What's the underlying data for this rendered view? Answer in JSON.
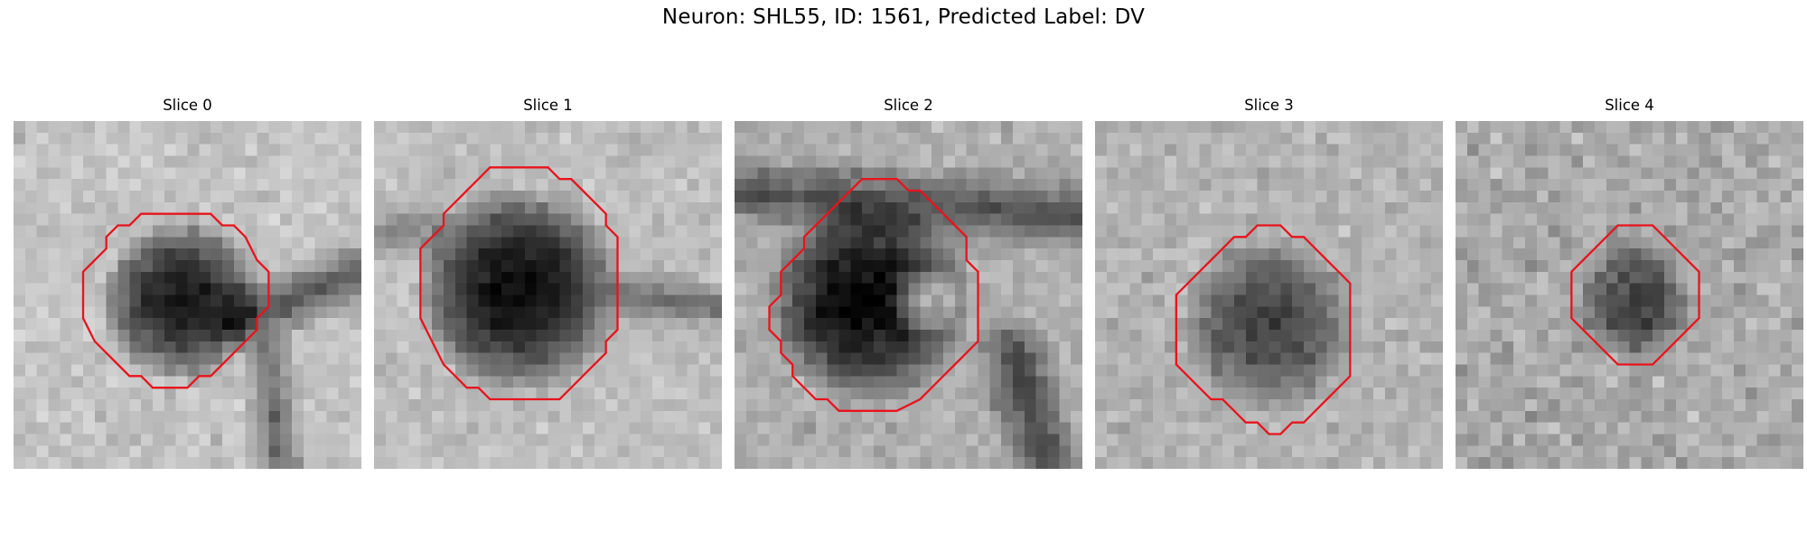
{
  "figure": {
    "suptitle": "Neuron: SHL55, ID: 1561, Predicted Label: DV",
    "contour_color": "#e8141c",
    "colormap": "gray"
  },
  "panels": [
    {
      "title": "Slice 0",
      "image": "grayscale microscopy patch, dark round neuron soma, dark process extending to the right",
      "contour": [
        [
          14,
          8
        ],
        [
          17,
          8
        ],
        [
          18,
          9
        ],
        [
          19,
          9
        ],
        [
          20,
          10
        ],
        [
          21,
          12
        ],
        [
          22,
          13
        ],
        [
          22,
          16
        ],
        [
          21,
          17
        ],
        [
          21,
          18
        ],
        [
          20,
          19
        ],
        [
          19,
          20
        ],
        [
          18,
          21
        ],
        [
          17,
          22
        ],
        [
          16,
          22
        ],
        [
          15,
          23
        ],
        [
          12,
          23
        ],
        [
          11,
          22
        ],
        [
          10,
          22
        ],
        [
          9,
          21
        ],
        [
          8,
          20
        ],
        [
          7,
          19
        ],
        [
          6,
          17
        ],
        [
          6,
          13
        ],
        [
          7,
          12
        ],
        [
          8,
          11
        ],
        [
          8,
          10
        ],
        [
          9,
          9
        ],
        [
          10,
          9
        ],
        [
          11,
          8
        ]
      ]
    },
    {
      "title": "Slice 1",
      "image": "grayscale microscopy patch, large dark neuron soma",
      "contour": [
        [
          10,
          4
        ],
        [
          15,
          4
        ],
        [
          16,
          5
        ],
        [
          17,
          5
        ],
        [
          18,
          6
        ],
        [
          19,
          7
        ],
        [
          20,
          8
        ],
        [
          20,
          9
        ],
        [
          21,
          10
        ],
        [
          21,
          18
        ],
        [
          20,
          19
        ],
        [
          20,
          20
        ],
        [
          19,
          21
        ],
        [
          18,
          22
        ],
        [
          17,
          23
        ],
        [
          16,
          24
        ],
        [
          10,
          24
        ],
        [
          9,
          23
        ],
        [
          8,
          23
        ],
        [
          7,
          22
        ],
        [
          6,
          21
        ],
        [
          5,
          19
        ],
        [
          4,
          17
        ],
        [
          4,
          11
        ],
        [
          5,
          10
        ],
        [
          6,
          9
        ],
        [
          6,
          8
        ],
        [
          7,
          7
        ],
        [
          8,
          6
        ],
        [
          9,
          5
        ]
      ]
    },
    {
      "title": "Slice 2",
      "image": "grayscale microscopy patch, dark soma with a lighter nucleus region on the right",
      "contour": [
        [
          11,
          5
        ],
        [
          14,
          5
        ],
        [
          15,
          6
        ],
        [
          16,
          6
        ],
        [
          17,
          7
        ],
        [
          18,
          8
        ],
        [
          19,
          9
        ],
        [
          20,
          10
        ],
        [
          20,
          12
        ],
        [
          21,
          13
        ],
        [
          21,
          19
        ],
        [
          20,
          20
        ],
        [
          19,
          21
        ],
        [
          18,
          22
        ],
        [
          17,
          23
        ],
        [
          16,
          24
        ],
        [
          14,
          25
        ],
        [
          9,
          25
        ],
        [
          8,
          24
        ],
        [
          7,
          24
        ],
        [
          6,
          23
        ],
        [
          5,
          22
        ],
        [
          5,
          21
        ],
        [
          4,
          20
        ],
        [
          4,
          19
        ],
        [
          3,
          18
        ],
        [
          3,
          16
        ],
        [
          4,
          15
        ],
        [
          4,
          13
        ],
        [
          5,
          12
        ],
        [
          6,
          11
        ],
        [
          6,
          10
        ],
        [
          7,
          9
        ],
        [
          8,
          8
        ],
        [
          9,
          7
        ],
        [
          10,
          6
        ]
      ]
    },
    {
      "title": "Slice 3",
      "image": "grayscale microscopy patch, medium dark textured neuron soma",
      "contour": [
        [
          14,
          9
        ],
        [
          16,
          9
        ],
        [
          17,
          10
        ],
        [
          18,
          10
        ],
        [
          19,
          11
        ],
        [
          20,
          12
        ],
        [
          21,
          13
        ],
        [
          22,
          14
        ],
        [
          22,
          22
        ],
        [
          21,
          23
        ],
        [
          20,
          24
        ],
        [
          19,
          25
        ],
        [
          18,
          26
        ],
        [
          17,
          26
        ],
        [
          16,
          27
        ],
        [
          15,
          27
        ],
        [
          14,
          26
        ],
        [
          13,
          26
        ],
        [
          12,
          25
        ],
        [
          11,
          24
        ],
        [
          10,
          24
        ],
        [
          9,
          23
        ],
        [
          8,
          22
        ],
        [
          7,
          21
        ],
        [
          7,
          15
        ],
        [
          8,
          14
        ],
        [
          9,
          13
        ],
        [
          10,
          12
        ],
        [
          11,
          11
        ],
        [
          12,
          10
        ],
        [
          13,
          10
        ]
      ]
    },
    {
      "title": "Slice 4",
      "image": "grayscale microscopy patch, small dark soma in a noisy background",
      "contour": [
        [
          14,
          9
        ],
        [
          17,
          9
        ],
        [
          18,
          10
        ],
        [
          19,
          11
        ],
        [
          20,
          12
        ],
        [
          21,
          13
        ],
        [
          21,
          17
        ],
        [
          20,
          18
        ],
        [
          19,
          19
        ],
        [
          18,
          20
        ],
        [
          17,
          21
        ],
        [
          14,
          21
        ],
        [
          13,
          20
        ],
        [
          12,
          19
        ],
        [
          11,
          18
        ],
        [
          10,
          17
        ],
        [
          10,
          13
        ],
        [
          11,
          12
        ],
        [
          12,
          11
        ],
        [
          13,
          10
        ]
      ]
    }
  ]
}
